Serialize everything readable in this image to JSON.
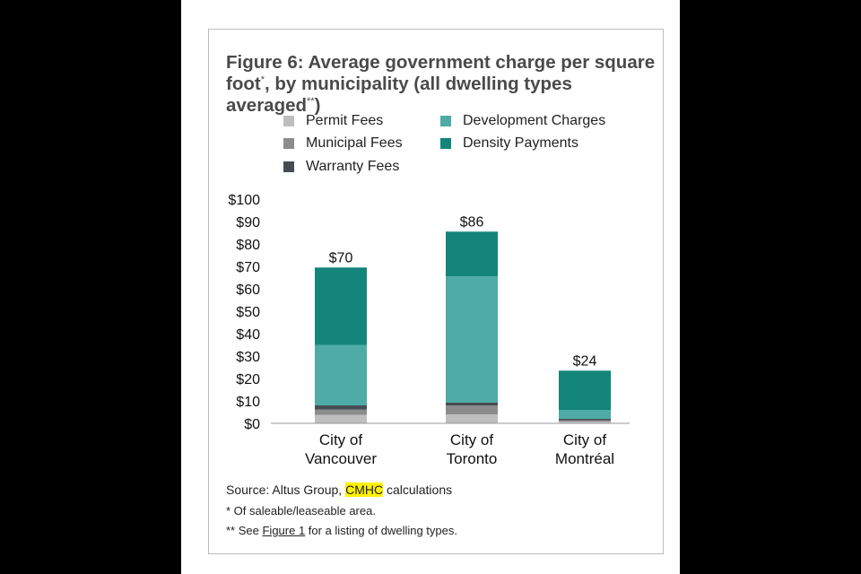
{
  "figure": {
    "title_line1": "Figure 6: Average government charge per square",
    "title_line2a": "foot",
    "title_sup1": "*",
    "title_line2b": ", by municipality (all dwelling types averaged",
    "title_sup2": "**",
    "title_line2c": ")"
  },
  "chart_data": {
    "type": "bar",
    "stacked": true,
    "categories": [
      [
        "City of",
        "Vancouver"
      ],
      [
        "City of",
        "Toronto"
      ],
      [
        "City of",
        "Montréal"
      ]
    ],
    "series": [
      {
        "name": "Permit Fees",
        "color": "#bebebe",
        "values": [
          3.8,
          4.0,
          0.8
        ]
      },
      {
        "name": "Municipal Fees",
        "color": "#8c8c8c",
        "values": [
          2.4,
          4.0,
          0.6
        ]
      },
      {
        "name": "Warranty Fees",
        "color": "#474c52",
        "values": [
          1.8,
          1.2,
          0.6
        ]
      },
      {
        "name": "Development Charges",
        "color": "#4eaba6",
        "values": [
          27.0,
          56.3,
          4.0
        ]
      },
      {
        "name": "Density Payments",
        "color": "#14857b",
        "values": [
          34.5,
          20.0,
          17.5
        ]
      }
    ],
    "totals": [
      "$70",
      "$86",
      "$24"
    ],
    "yticks": [
      "$0",
      "$10",
      "$20",
      "$30",
      "$40",
      "$50",
      "$60",
      "$70",
      "$80",
      "$90",
      "$100"
    ],
    "ylim": [
      0,
      100
    ],
    "legend_position": "top"
  },
  "notes": {
    "source_prefix": "Source: Altus Group, ",
    "source_highlight": "CMHC",
    "source_suffix": " calculations",
    "note1": "* Of saleable/leaseable area.",
    "note2_prefix": "** See ",
    "note2_link": "Figure 1",
    "note2_suffix": " for a listing of dwelling types."
  }
}
